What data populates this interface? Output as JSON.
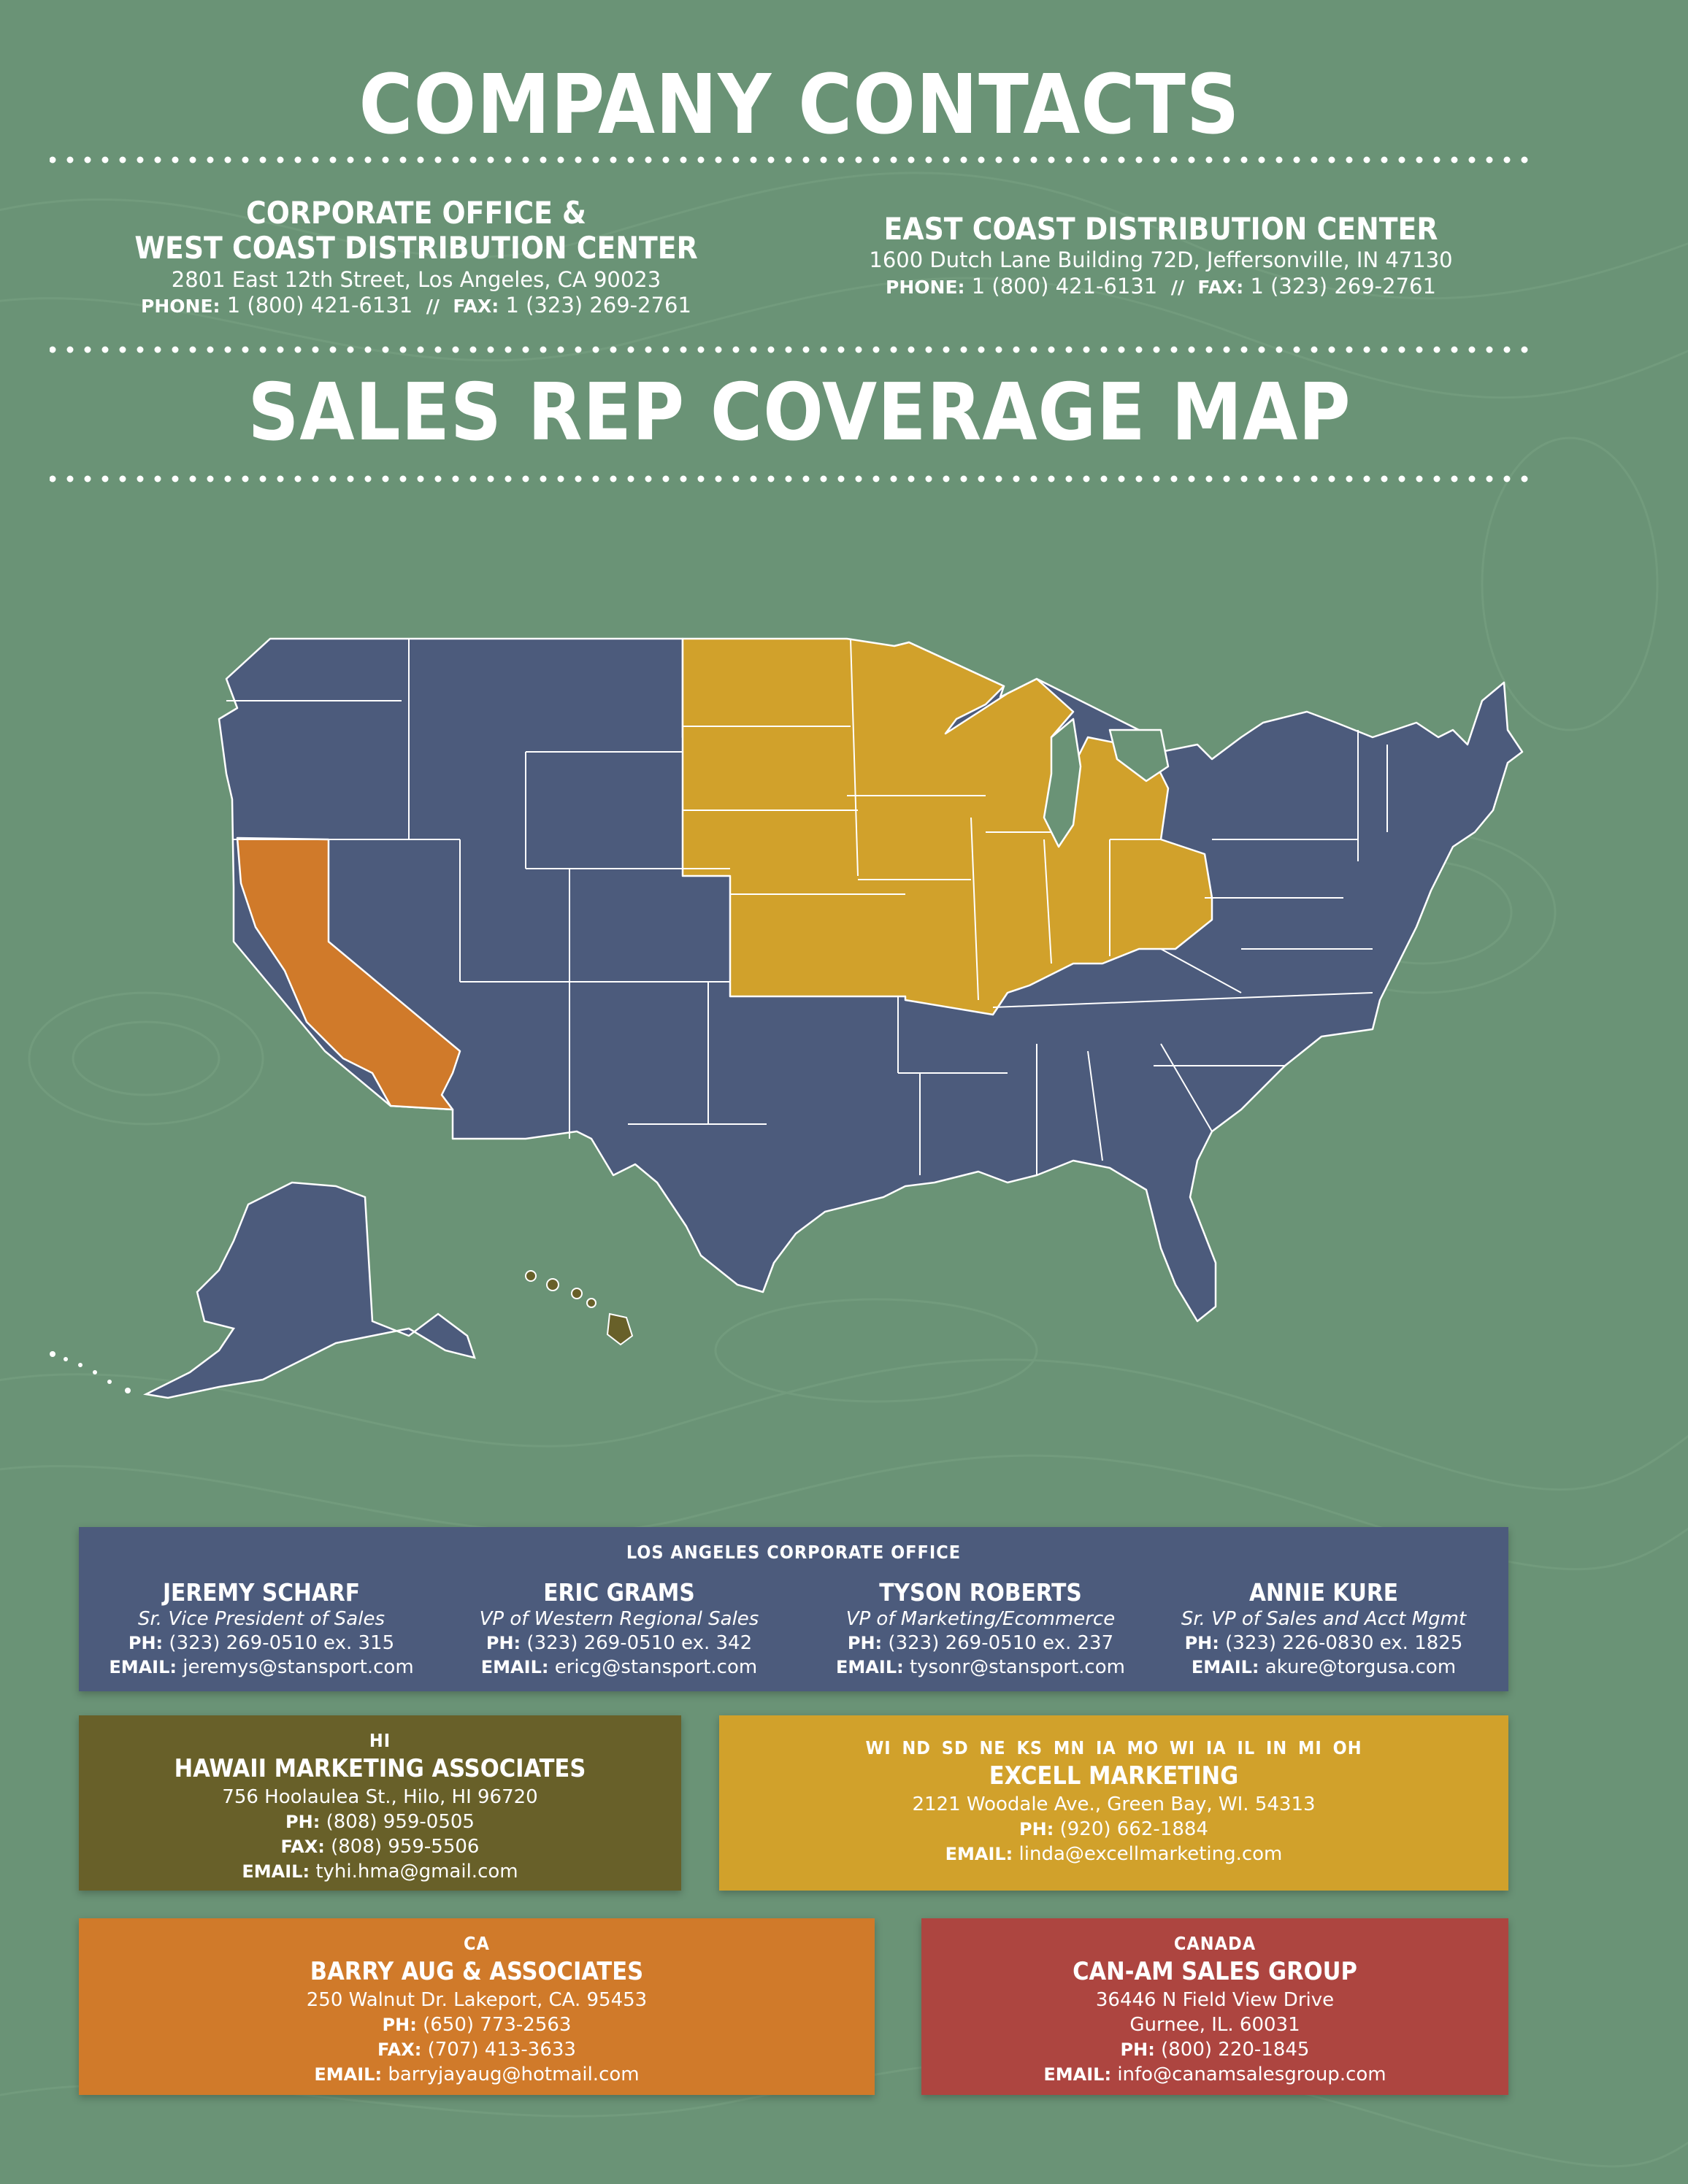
{
  "colors": {
    "background": "#6a9376",
    "navy": "#4c5b7c",
    "gold": "#d1a12b",
    "orange": "#d07a2a",
    "olive": "#686029",
    "red": "#ad4540"
  },
  "header": {
    "title": "COMPANY CONTACTS"
  },
  "offices": [
    {
      "name_line1": "CORPORATE OFFICE &",
      "name_line2": "WEST COAST DISTRIBUTION CENTER",
      "address": "2801 East 12th Street, Los Angeles, CA  90023",
      "phone_label": "PHONE:",
      "phone": "1 (800) 421-6131",
      "separator": "//",
      "fax_label": "FAX:",
      "fax": "1 (323) 269-2761"
    },
    {
      "name_line1": "EAST COAST DISTRIBUTION CENTER",
      "address": "1600 Dutch Lane Building 72D, Jeffersonville, IN 47130",
      "phone_label": "PHONE:",
      "phone": "1 (800) 421-6131",
      "separator": "//",
      "fax_label": "FAX:",
      "fax": "1 (323) 269-2761"
    }
  ],
  "map_section": {
    "title": "SALES REP COVERAGE MAP"
  },
  "la_office": {
    "region": "LOS ANGELES CORPORATE OFFICE",
    "people": [
      {
        "name": "JEREMY SCHARF",
        "title": "Sr. Vice President of Sales",
        "ph_label": "PH:",
        "phone": "(323) 269-0510 ex. 315",
        "email_label": "EMAIL:",
        "email": "jeremys@stansport.com"
      },
      {
        "name": "ERIC GRAMS",
        "title": "VP of Western Regional Sales",
        "ph_label": "PH:",
        "phone": "(323) 269-0510 ex. 342",
        "email_label": "EMAIL:",
        "email": "ericg@stansport.com"
      },
      {
        "name": "TYSON ROBERTS",
        "title": "VP of Marketing/Ecommerce",
        "ph_label": "PH:",
        "phone": "(323) 269-0510 ex. 237",
        "email_label": "EMAIL:",
        "email": "tysonr@stansport.com"
      },
      {
        "name": "ANNIE KURE",
        "title": "Sr. VP of Sales and Acct Mgmt",
        "ph_label": "PH:",
        "phone": "(323) 226-0830 ex. 1825",
        "email_label": "EMAIL:",
        "email": "akure@torgusa.com"
      }
    ]
  },
  "hawaii": {
    "region": "HI",
    "company": "HAWAII MARKETING ASSOCIATES",
    "address": "756 Hoolaulea St., Hilo, HI  96720",
    "ph_label": "PH:",
    "phone": "(808) 959-0505",
    "fax_label": "FAX:",
    "fax": "(808) 959-5506",
    "email_label": "EMAIL:",
    "email": "tyhi.hma@gmail.com"
  },
  "midwest": {
    "region": "WI ND  SD  NE  KS  MN  IA  MO  WI  IA IL  IN  MI  OH",
    "company": "EXCELL MARKETING",
    "address": "2121 Woodale Ave., Green Bay, WI. 54313",
    "ph_label": "PH:",
    "phone": "(920) 662-1884",
    "email_label": "EMAIL:",
    "email": "linda@excellmarketing.com"
  },
  "california": {
    "region": "CA",
    "company": "BARRY AUG & ASSOCIATES",
    "address": "250 Walnut Dr. Lakeport, CA. 95453",
    "ph_label": "PH:",
    "phone": "(650) 773-2563",
    "fax_label": "FAX:",
    "fax": "(707) 413-3633",
    "email_label": "EMAIL:",
    "email": "barryjayaug@hotmail.com"
  },
  "canada": {
    "region": "CANADA",
    "company": "CAN-AM SALES GROUP",
    "address_line1": "36446 N Field View Drive",
    "address_line2": "Gurnee, IL.  60031",
    "ph_label": "PH:",
    "phone": "(800) 220-1845",
    "email_label": "EMAIL:",
    "email": "info@canamsalesgroup.com"
  }
}
